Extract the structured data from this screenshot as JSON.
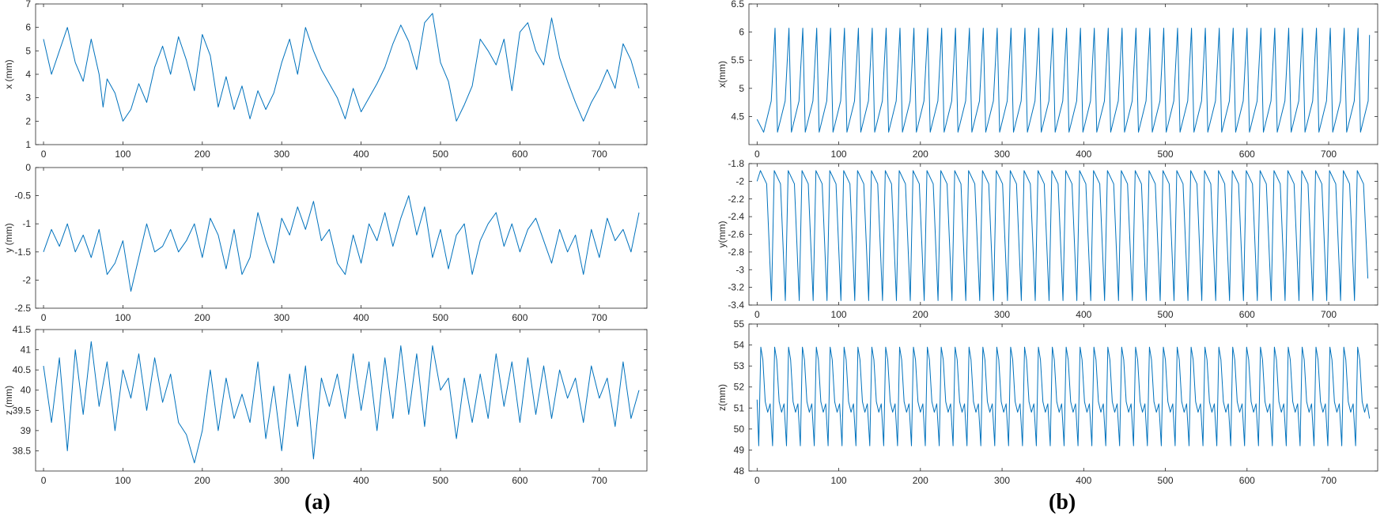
{
  "panel_labels": {
    "a": "(a)",
    "b": "(b)"
  },
  "style": {
    "line_color": "#0072BD",
    "axis_color": "#262626",
    "tick_text_color": "#262626"
  },
  "chart_data": [
    {
      "id": "a-x",
      "type": "line",
      "panel": "a",
      "xlabel": "",
      "ylabel": "x (mm)",
      "xlim": [
        -10,
        760
      ],
      "ylim": [
        1,
        7
      ],
      "xticks": [
        0,
        100,
        200,
        300,
        400,
        500,
        600,
        700
      ],
      "yticks": [
        1,
        2,
        3,
        4,
        5,
        6,
        7
      ],
      "series": [
        {
          "x": [
            0,
            10,
            20,
            30,
            40,
            50,
            60,
            70,
            75,
            80,
            90,
            100,
            110,
            120,
            130,
            140,
            150,
            160,
            170,
            180,
            190,
            200,
            210,
            220,
            230,
            240,
            250,
            260,
            270,
            280,
            290,
            300,
            310,
            320,
            330,
            340,
            350,
            360,
            370,
            380,
            390,
            400,
            410,
            420,
            430,
            440,
            450,
            460,
            470,
            480,
            490,
            500,
            510,
            520,
            530,
            540,
            550,
            560,
            570,
            580,
            590,
            600,
            610,
            620,
            630,
            640,
            650,
            660,
            670,
            680,
            690,
            700,
            710,
            720,
            730,
            740,
            750
          ],
          "y": [
            5.5,
            4.0,
            5.0,
            6.0,
            4.5,
            3.7,
            5.5,
            4.0,
            2.6,
            3.8,
            3.2,
            2.0,
            2.5,
            3.6,
            2.8,
            4.3,
            5.2,
            4.0,
            5.6,
            4.6,
            3.3,
            5.7,
            4.8,
            2.6,
            3.9,
            2.5,
            3.5,
            2.1,
            3.3,
            2.5,
            3.2,
            4.5,
            5.5,
            4.0,
            6.0,
            5.0,
            4.2,
            3.6,
            3.0,
            2.1,
            3.4,
            2.4,
            3.0,
            3.6,
            4.3,
            5.3,
            6.1,
            5.4,
            4.2,
            6.2,
            6.6,
            4.5,
            3.7,
            2.0,
            2.7,
            3.5,
            5.5,
            5.0,
            4.4,
            5.5,
            3.3,
            5.8,
            6.2,
            5.0,
            4.4,
            6.4,
            4.7,
            3.7,
            2.8,
            2.0,
            2.8,
            3.4,
            4.2,
            3.4,
            5.3,
            4.6,
            3.4
          ]
        }
      ]
    },
    {
      "id": "a-y",
      "type": "line",
      "panel": "a",
      "xlabel": "",
      "ylabel": "y (mm)",
      "xlim": [
        -10,
        760
      ],
      "ylim": [
        -2.5,
        0
      ],
      "xticks": [
        0,
        100,
        200,
        300,
        400,
        500,
        600,
        700
      ],
      "yticks": [
        -2.5,
        -2,
        -1.5,
        -1,
        -0.5,
        0
      ],
      "series": [
        {
          "x": [
            0,
            10,
            20,
            30,
            40,
            50,
            60,
            70,
            80,
            90,
            100,
            110,
            120,
            130,
            140,
            150,
            160,
            170,
            180,
            190,
            200,
            210,
            220,
            230,
            240,
            250,
            260,
            270,
            280,
            290,
            300,
            310,
            320,
            330,
            340,
            350,
            360,
            370,
            380,
            390,
            400,
            410,
            420,
            430,
            440,
            450,
            460,
            470,
            480,
            490,
            500,
            510,
            520,
            530,
            540,
            550,
            560,
            570,
            580,
            590,
            600,
            610,
            620,
            630,
            640,
            650,
            660,
            670,
            680,
            690,
            700,
            710,
            720,
            730,
            740,
            750
          ],
          "y": [
            -1.5,
            -1.1,
            -1.4,
            -1.0,
            -1.5,
            -1.2,
            -1.6,
            -1.1,
            -1.9,
            -1.7,
            -1.3,
            -2.2,
            -1.6,
            -1.0,
            -1.5,
            -1.4,
            -1.1,
            -1.5,
            -1.3,
            -1.0,
            -1.6,
            -0.9,
            -1.2,
            -1.8,
            -1.1,
            -1.9,
            -1.6,
            -0.8,
            -1.3,
            -1.7,
            -0.9,
            -1.2,
            -0.7,
            -1.1,
            -0.6,
            -1.3,
            -1.1,
            -1.7,
            -1.9,
            -1.2,
            -1.7,
            -1.0,
            -1.3,
            -0.8,
            -1.4,
            -0.9,
            -0.5,
            -1.2,
            -0.7,
            -1.6,
            -1.1,
            -1.8,
            -1.2,
            -1.0,
            -1.9,
            -1.3,
            -1.0,
            -0.8,
            -1.4,
            -1.0,
            -1.5,
            -1.1,
            -0.9,
            -1.3,
            -1.7,
            -1.1,
            -1.5,
            -1.2,
            -1.9,
            -1.1,
            -1.6,
            -0.9,
            -1.3,
            -1.1,
            -1.5,
            -0.8
          ]
        }
      ]
    },
    {
      "id": "a-z",
      "type": "line",
      "panel": "a",
      "xlabel": "",
      "ylabel": "z (mm)",
      "xlim": [
        -10,
        760
      ],
      "ylim": [
        38,
        41.5
      ],
      "xticks": [
        0,
        100,
        200,
        300,
        400,
        500,
        600,
        700
      ],
      "yticks": [
        38.5,
        39,
        39.5,
        40,
        40.5,
        41,
        41.5
      ],
      "series": [
        {
          "x": [
            0,
            10,
            20,
            30,
            40,
            50,
            60,
            70,
            80,
            90,
            100,
            110,
            120,
            130,
            140,
            150,
            160,
            170,
            180,
            190,
            200,
            210,
            220,
            230,
            240,
            250,
            260,
            270,
            280,
            290,
            300,
            310,
            320,
            330,
            340,
            350,
            360,
            370,
            380,
            390,
            400,
            410,
            420,
            430,
            440,
            450,
            460,
            470,
            480,
            490,
            500,
            510,
            520,
            530,
            540,
            550,
            560,
            570,
            580,
            590,
            600,
            610,
            620,
            630,
            640,
            650,
            660,
            670,
            680,
            690,
            700,
            710,
            720,
            730,
            740,
            750
          ],
          "y": [
            40.6,
            39.2,
            40.8,
            38.5,
            41.0,
            39.4,
            41.2,
            39.6,
            40.7,
            39.0,
            40.5,
            39.8,
            40.9,
            39.5,
            40.8,
            39.7,
            40.4,
            39.2,
            38.9,
            38.2,
            39.0,
            40.5,
            39.0,
            40.3,
            39.3,
            39.9,
            39.2,
            40.7,
            38.8,
            40.1,
            38.5,
            40.4,
            39.1,
            40.6,
            38.3,
            40.3,
            39.6,
            40.4,
            39.3,
            40.9,
            39.5,
            40.7,
            39.0,
            40.8,
            39.3,
            41.1,
            39.4,
            40.9,
            39.1,
            41.1,
            40.0,
            40.3,
            38.8,
            40.3,
            39.2,
            40.4,
            39.3,
            40.9,
            39.6,
            40.7,
            39.2,
            40.8,
            39.4,
            40.6,
            39.3,
            40.5,
            39.8,
            40.3,
            39.2,
            40.6,
            39.8,
            40.3,
            39.1,
            40.7,
            39.3,
            40.0
          ]
        }
      ]
    },
    {
      "id": "b-x",
      "type": "line",
      "panel": "b",
      "xlabel": "",
      "ylabel": "x(mm)",
      "xlim": [
        -10,
        760
      ],
      "ylim": [
        4,
        6.5
      ],
      "xticks": [
        0,
        100,
        200,
        300,
        400,
        500,
        600,
        700
      ],
      "yticks": [
        4.5,
        5,
        5.5,
        6,
        6.5
      ],
      "periodic": {
        "period": 17,
        "phase": 8,
        "rise": 0.12,
        "min": 4.22,
        "max": 6.07,
        "start": 4.45,
        "last_x": 750,
        "last_y": 5.95
      }
    },
    {
      "id": "b-y",
      "type": "line",
      "panel": "b",
      "xlabel": "",
      "ylabel": "y(mm)",
      "xlim": [
        -10,
        760
      ],
      "ylim": [
        -3.4,
        -1.8
      ],
      "xticks": [
        0,
        100,
        200,
        300,
        400,
        500,
        600,
        700
      ],
      "yticks": [
        -3.4,
        -3.2,
        -3,
        -2.8,
        -2.6,
        -2.4,
        -2.2,
        -2,
        -1.8
      ],
      "periodic": {
        "period": 17,
        "phase": 4,
        "drop": 0.25,
        "min": -3.35,
        "max": -1.88,
        "start": -2.0,
        "last_x": 748,
        "last_y": -3.1
      }
    },
    {
      "id": "b-z",
      "type": "line",
      "panel": "b",
      "xlabel": "",
      "ylabel": "z(mm)",
      "xlim": [
        -10,
        760
      ],
      "ylim": [
        48,
        55
      ],
      "xticks": [
        0,
        100,
        200,
        300,
        400,
        500,
        600,
        700
      ],
      "yticks": [
        48,
        49,
        50,
        51,
        52,
        53,
        54,
        55
      ],
      "periodic": {
        "period": 17,
        "phase": 2,
        "min": 49.2,
        "max": 53.9,
        "mid": 51.1,
        "start": 51.4,
        "last_x": 750,
        "last_y": 50.5
      }
    }
  ]
}
